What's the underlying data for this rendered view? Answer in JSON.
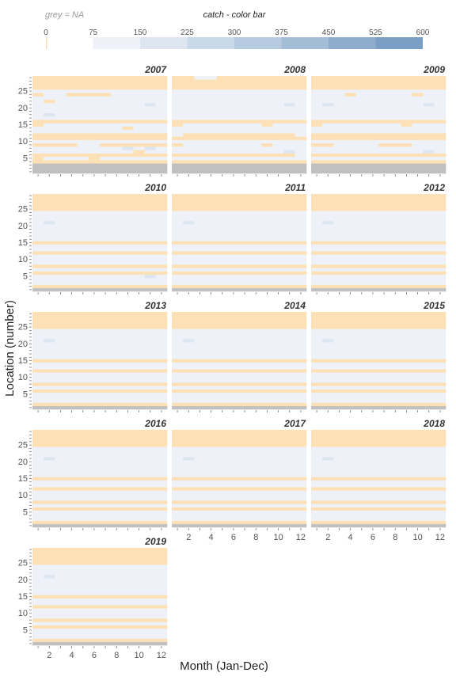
{
  "chart_data": {
    "type": "heatmap",
    "legend": {
      "na_note": "grey = NA",
      "title": "catch - color bar",
      "ticks": [
        "0",
        "75",
        "150",
        "225",
        "300",
        "375",
        "450",
        "525",
        "600"
      ],
      "breaks": [
        0,
        75,
        150,
        225,
        300,
        375,
        450,
        525,
        600
      ],
      "colors": [
        "#fde0b5",
        "#eef2f8",
        "#dde6f0",
        "#cad9e8",
        "#b7cbe0",
        "#a3bdd7",
        "#8eadcd",
        "#7b9fc4"
      ],
      "na_color": "#c0c0c0"
    },
    "xlabel": "Month (Jan-Dec)",
    "ylabel": "Location (number)",
    "x_ticks": [
      "2",
      "4",
      "6",
      "8",
      "10",
      "12"
    ],
    "y_ticks": [
      "5",
      "10",
      "15",
      "20",
      "25"
    ],
    "xlim": [
      1,
      12
    ],
    "ylim": [
      1,
      29
    ],
    "panels": [
      {
        "year": "2007",
        "rows": [
          "NNNNNNNNNNNN",
          "NNNNNNNNNNNN",
          "NNNNNNNNNNNN",
          "000000000000",
          "011110111111",
          "000000000000",
          "111111111011",
          "111111112121",
          "000011000000",
          "111111111111",
          "000000000000",
          "000000000000",
          "111111111111",
          "111111110111",
          "011111111111",
          "000000000000",
          "111111111111",
          "121111111111",
          "111111111111",
          "111111111111",
          "111111111121",
          "101111111111",
          "111111111111",
          "011000011111",
          "111111111111",
          "000000000000",
          "000000000000",
          "000000000000",
          "000000000000"
        ]
      },
      {
        "year": "2008",
        "rows": [
          "NNNNNNNNNNNN",
          "NNNNNNNNNNNN",
          "NNNNNNNNNNNN",
          "000000000000",
          "111111111111",
          "000000000001",
          "111111111121",
          "111111111111",
          "011111110111",
          "111111111111",
          "000000000000",
          "100000000001",
          "111111111111",
          "111111111111",
          "011111110111",
          "000000000000",
          "111111111111",
          "111111111111",
          "111111111111",
          "111111111111",
          "111111111121",
          "111111111111",
          "111111111111",
          "111111111111",
          "111111111111",
          "000000000000",
          "000000000000",
          "000000000000",
          "001100000000"
        ]
      },
      {
        "year": "2009",
        "rows": [
          "NNNNNNNNNNNN",
          "NNNNNNNNNNNN",
          "NNNNNNNNNNNN",
          "000000000000",
          "111111111111",
          "000000000000",
          "111111111121",
          "111111111111",
          "001111000111",
          "111111111111",
          "000000000000",
          "000000000000",
          "111111111111",
          "111111111111",
          "011111110111",
          "000000000000",
          "111111111111",
          "111111111111",
          "111111111111",
          "111111111111",
          "121111111121",
          "111111111111",
          "111111111111",
          "111011111011",
          "111111111111",
          "000000000000",
          "000000000000",
          "000000000000",
          "000000000000"
        ]
      },
      {
        "year": "2010",
        "rows": [
          "NNNNNNNNNNNN",
          "000000000000",
          "111111111111",
          "111111111111",
          "111111111121",
          "000000000000",
          "111111111111",
          "000000000000",
          "111111111111",
          "111111111111",
          "111111111111",
          "000000000000",
          "111111111111",
          "111111111111",
          "000000000000",
          "111111111111",
          "111111111111",
          "111111111111",
          "111111111111",
          "111111111111",
          "121111111111",
          "111111111111",
          "111111111111",
          "111111111111",
          "000000000000",
          "000000000000",
          "000000000000",
          "000000000000",
          "000000000000"
        ]
      },
      {
        "year": "2011",
        "rows": [
          "NNNNNNNNNNNN",
          "000000000000",
          "111111111111",
          "111111111111",
          "111111111111",
          "000000000000",
          "111111111111",
          "000000000000",
          "111111111111",
          "111111111111",
          "111111111111",
          "000000000000",
          "111111111111",
          "111111111111",
          "000000000000",
          "111111111111",
          "111111111111",
          "111111111111",
          "111111111111",
          "111111111111",
          "121111111111",
          "111111111111",
          "111111111111",
          "111111111111",
          "000000000000",
          "000000000000",
          "000000000000",
          "000000000000",
          "000000000000"
        ]
      },
      {
        "year": "2012",
        "rows": [
          "NNNNNNNNNNNN",
          "000000000000",
          "111111111111",
          "111111111111",
          "111111111111",
          "000000000000",
          "111111111111",
          "000000000000",
          "111111111111",
          "111111111111",
          "111111111111",
          "000000000000",
          "111111111111",
          "111111111111",
          "000000000000",
          "111111111111",
          "111111111111",
          "111111111111",
          "111111111111",
          "111111111111",
          "121111111111",
          "111111111111",
          "111111111111",
          "111111111111",
          "000000000000",
          "000000000000",
          "000000000000",
          "000000000000",
          "000000000000"
        ]
      },
      {
        "year": "2013",
        "rows": [
          "NNNNNNNNNNNN",
          "000000000000",
          "111111111111",
          "111111111111",
          "111111111111",
          "000000000000",
          "111111111111",
          "000000000000",
          "111111111111",
          "111111111111",
          "111111111111",
          "000000000000",
          "111111111111",
          "111111111111",
          "000000000000",
          "111111111111",
          "111111111111",
          "111111111111",
          "111111111111",
          "111111111111",
          "121111111111",
          "111111111111",
          "111111111111",
          "111111111111",
          "000000000000",
          "000000000000",
          "000000000000",
          "000000000000",
          "000000000000"
        ]
      },
      {
        "year": "2014",
        "rows": [
          "NNNNNNNNNNNN",
          "000000000000",
          "111111111111",
          "111111111111",
          "111111111111",
          "000000000000",
          "111111111111",
          "000000000000",
          "111111111111",
          "111111111111",
          "111111111111",
          "000000000000",
          "111111111111",
          "111111111111",
          "000000000000",
          "111111111111",
          "111111111111",
          "111111111111",
          "111111111111",
          "111111111111",
          "121111111111",
          "111111111111",
          "111111111111",
          "111111111111",
          "000000000000",
          "000000000000",
          "000000000000",
          "000000000000",
          "000000000000"
        ]
      },
      {
        "year": "2015",
        "rows": [
          "NNNNNNNNNNNN",
          "000000000000",
          "111111111111",
          "111111111111",
          "111111111111",
          "000000000000",
          "111111111111",
          "000000000000",
          "111111111111",
          "111111111111",
          "111111111111",
          "000000000000",
          "111111111111",
          "111111111111",
          "000000000000",
          "111111111111",
          "111111111111",
          "111111111111",
          "111111111111",
          "111111111111",
          "121111111111",
          "111111111111",
          "111111111111",
          "111111111111",
          "000000000000",
          "000000000000",
          "000000000000",
          "000000000000",
          "000000000000"
        ]
      },
      {
        "year": "2016",
        "rows": [
          "NNNNNNNNNNNN",
          "000000000000",
          "111111111111",
          "111111111111",
          "111111111111",
          "000000000000",
          "111111111111",
          "000000000000",
          "111111111111",
          "111111111111",
          "111111111111",
          "000000000000",
          "111111111111",
          "111111111111",
          "000000000000",
          "111111111111",
          "111111111111",
          "111111111111",
          "111111111111",
          "111111111111",
          "121111111111",
          "111111111111",
          "111111111111",
          "111111111111",
          "000000000000",
          "000000000000",
          "000000000000",
          "000000000000",
          "000000000000"
        ]
      },
      {
        "year": "2017",
        "rows": [
          "NNNNNNNNNNNN",
          "000000000000",
          "111111111111",
          "111111111111",
          "111111111111",
          "000000000000",
          "111111111111",
          "000000000000",
          "111111111111",
          "111111111111",
          "111111111111",
          "000000000000",
          "111111111111",
          "111111111111",
          "000000000000",
          "111111111111",
          "111111111111",
          "111111111111",
          "111111111111",
          "111111111111",
          "121111111111",
          "111111111111",
          "111111111111",
          "111111111111",
          "000000000000",
          "000000000000",
          "000000000000",
          "000000000000",
          "000000000000"
        ]
      },
      {
        "year": "2018",
        "rows": [
          "NNNNNNNNNNNN",
          "000000000000",
          "111111111111",
          "111111111111",
          "111111111111",
          "000000000000",
          "111111111111",
          "000000000000",
          "111111111111",
          "111111111111",
          "111111111111",
          "000000000000",
          "111111111111",
          "111111111111",
          "000000000000",
          "111111111111",
          "111111111111",
          "111111111111",
          "111111111111",
          "111111111111",
          "121111111111",
          "111111111111",
          "111111111111",
          "111111111111",
          "000000000000",
          "000000000000",
          "000000000000",
          "000000000000",
          "000000000000"
        ]
      },
      {
        "year": "2019",
        "rows": [
          "NNNNNNNNNNNN",
          "000000000000",
          "111111111111",
          "111111111111",
          "111111111111",
          "000000000000",
          "111111111111",
          "000000000000",
          "111111111111",
          "111111111111",
          "111111111111",
          "000000000000",
          "111111111111",
          "111111111111",
          "000000000000",
          "111111111111",
          "111111111111",
          "111111111111",
          "111111111111",
          "111111111111",
          "121111111111",
          "111111111111",
          "111111111111",
          "111111111111",
          "000000000000",
          "000000000000",
          "000000000000",
          "000000000000",
          "000000000000"
        ]
      }
    ]
  }
}
